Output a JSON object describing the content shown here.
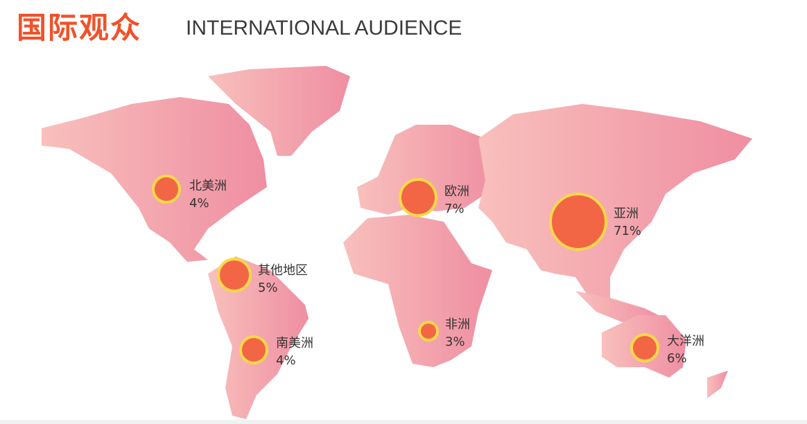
{
  "header": {
    "title_cn": "国际观众",
    "title_en": "INTERNATIONAL AUDIENCE"
  },
  "colors": {
    "title": "#f0522a",
    "bubble_fill": "#f26645",
    "bubble_ring": "#f7d84a",
    "land_light": "#f8c0bc",
    "land_dark": "#ef8ea2"
  },
  "regions": [
    {
      "name": "北美洲",
      "percent": 4,
      "label": "4%"
    },
    {
      "name": "欧洲",
      "percent": 7,
      "label": "7%"
    },
    {
      "name": "亚洲",
      "percent": 71,
      "label": "71%"
    },
    {
      "name": "其他地区",
      "percent": 5,
      "label": "5%"
    },
    {
      "name": "南美洲",
      "percent": 4,
      "label": "4%"
    },
    {
      "name": "非洲",
      "percent": 3,
      "label": "3%"
    },
    {
      "name": "大洋洲",
      "percent": 6,
      "label": "6%"
    }
  ]
}
